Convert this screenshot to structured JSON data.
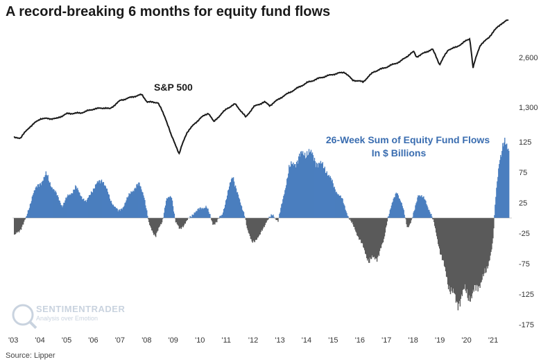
{
  "title": "A record-breaking 6 months for equity fund flows",
  "source": "Source: Lipper",
  "watermark": {
    "brand": "SENTIMENTRADER",
    "tagline": "Analysis over Emotion"
  },
  "chart_data": [
    {
      "type": "line",
      "name": "S&P 500",
      "scale": "log",
      "y_ticks": [
        1300,
        2600
      ],
      "y_tick_labels": [
        "1,300",
        "2,600"
      ],
      "points": [
        [
          2003.0,
          850
        ],
        [
          2003.25,
          850
        ],
        [
          2003.6,
          990
        ],
        [
          2004.0,
          1110
        ],
        [
          2004.6,
          1110
        ],
        [
          2005.0,
          1190
        ],
        [
          2005.5,
          1200
        ],
        [
          2006.0,
          1270
        ],
        [
          2006.4,
          1290
        ],
        [
          2006.6,
          1270
        ],
        [
          2007.0,
          1430
        ],
        [
          2007.5,
          1510
        ],
        [
          2007.8,
          1550
        ],
        [
          2008.0,
          1400
        ],
        [
          2008.4,
          1390
        ],
        [
          2008.7,
          1100
        ],
        [
          2008.9,
          880
        ],
        [
          2009.2,
          680
        ],
        [
          2009.5,
          920
        ],
        [
          2010.0,
          1120
        ],
        [
          2010.3,
          1200
        ],
        [
          2010.5,
          1060
        ],
        [
          2011.0,
          1280
        ],
        [
          2011.3,
          1360
        ],
        [
          2011.7,
          1130
        ],
        [
          2012.0,
          1310
        ],
        [
          2012.4,
          1400
        ],
        [
          2012.6,
          1330
        ],
        [
          2013.0,
          1480
        ],
        [
          2013.5,
          1650
        ],
        [
          2014.0,
          1830
        ],
        [
          2014.5,
          1960
        ],
        [
          2015.0,
          2060
        ],
        [
          2015.4,
          2120
        ],
        [
          2015.7,
          1900
        ],
        [
          2016.1,
          1850
        ],
        [
          2016.5,
          2130
        ],
        [
          2017.0,
          2280
        ],
        [
          2017.5,
          2460
        ],
        [
          2018.0,
          2820
        ],
        [
          2018.1,
          2620
        ],
        [
          2018.7,
          2920
        ],
        [
          2018.97,
          2350
        ],
        [
          2019.3,
          2900
        ],
        [
          2019.6,
          3000
        ],
        [
          2020.1,
          3380
        ],
        [
          2020.22,
          2240
        ],
        [
          2020.5,
          3100
        ],
        [
          2020.8,
          3400
        ],
        [
          2021.0,
          3750
        ],
        [
          2021.3,
          4180
        ],
        [
          2021.5,
          4350
        ]
      ]
    },
    {
      "type": "area",
      "name": "26-Week Sum of Equity Fund Flows",
      "unit": "In $ Billions",
      "y_ticks": [
        125,
        75,
        25,
        -25,
        -75,
        -125,
        -175
      ],
      "ylim": [
        -185,
        138
      ],
      "x_ticks": [
        "'03",
        "'04",
        "'05",
        "'06",
        "'07",
        "'08",
        "'09",
        "'10",
        "'11",
        "'12",
        "'13",
        "'14",
        "'15",
        "'16",
        "'17",
        "'18",
        "'19",
        "'20",
        "'21"
      ],
      "points": [
        [
          2003.0,
          -30
        ],
        [
          2003.2,
          -20
        ],
        [
          2003.45,
          0
        ],
        [
          2003.7,
          40
        ],
        [
          2004.0,
          60
        ],
        [
          2004.2,
          70
        ],
        [
          2004.5,
          45
        ],
        [
          2004.8,
          20
        ],
        [
          2005.0,
          35
        ],
        [
          2005.3,
          50
        ],
        [
          2005.7,
          25
        ],
        [
          2005.9,
          45
        ],
        [
          2006.1,
          55
        ],
        [
          2006.3,
          65
        ],
        [
          2006.6,
          30
        ],
        [
          2006.9,
          10
        ],
        [
          2007.1,
          20
        ],
        [
          2007.4,
          45
        ],
        [
          2007.7,
          55
        ],
        [
          2007.85,
          40
        ],
        [
          2008.05,
          -10
        ],
        [
          2008.3,
          -30
        ],
        [
          2008.55,
          -5
        ],
        [
          2008.7,
          30
        ],
        [
          2008.9,
          35
        ],
        [
          2009.05,
          -5
        ],
        [
          2009.2,
          -20
        ],
        [
          2009.45,
          -5
        ],
        [
          2009.6,
          0
        ],
        [
          2009.75,
          10
        ],
        [
          2010.0,
          15
        ],
        [
          2010.2,
          20
        ],
        [
          2010.45,
          -10
        ],
        [
          2010.6,
          -5
        ],
        [
          2010.8,
          5
        ],
        [
          2011.0,
          40
        ],
        [
          2011.2,
          70
        ],
        [
          2011.5,
          20
        ],
        [
          2011.65,
          5
        ],
        [
          2011.75,
          -20
        ],
        [
          2011.9,
          -40
        ],
        [
          2012.2,
          -30
        ],
        [
          2012.45,
          -5
        ],
        [
          2012.7,
          5
        ],
        [
          2012.9,
          -5
        ],
        [
          2013.05,
          25
        ],
        [
          2013.3,
          80
        ],
        [
          2013.7,
          100
        ],
        [
          2014.0,
          110
        ],
        [
          2014.4,
          90
        ],
        [
          2014.7,
          80
        ],
        [
          2015.0,
          50
        ],
        [
          2015.3,
          30
        ],
        [
          2015.55,
          0
        ],
        [
          2015.8,
          -20
        ],
        [
          2016.05,
          -45
        ],
        [
          2016.3,
          -70
        ],
        [
          2016.6,
          -65
        ],
        [
          2016.85,
          -40
        ],
        [
          2017.0,
          0
        ],
        [
          2017.15,
          20
        ],
        [
          2017.35,
          45
        ],
        [
          2017.55,
          20
        ],
        [
          2017.75,
          -15
        ],
        [
          2017.9,
          -5
        ],
        [
          2018.0,
          10
        ],
        [
          2018.15,
          40
        ],
        [
          2018.4,
          30
        ],
        [
          2018.6,
          10
        ],
        [
          2018.75,
          -10
        ],
        [
          2019.0,
          -60
        ],
        [
          2019.3,
          -110
        ],
        [
          2019.6,
          -140
        ],
        [
          2019.9,
          -120
        ],
        [
          2020.15,
          -130
        ],
        [
          2020.4,
          -110
        ],
        [
          2020.7,
          -90
        ],
        [
          2020.95,
          -40
        ],
        [
          2021.05,
          30
        ],
        [
          2021.2,
          100
        ],
        [
          2021.35,
          120
        ],
        [
          2021.5,
          115
        ]
      ]
    }
  ],
  "colors": {
    "line": "#1a1a1a",
    "positive": "#4a7ebf",
    "negative": "#5a5a5a"
  },
  "annotations": {
    "sp_label": "S&P 500",
    "flow_label_1": "26-Week Sum of Equity Fund Flows",
    "flow_label_2": "In $ Billions"
  }
}
